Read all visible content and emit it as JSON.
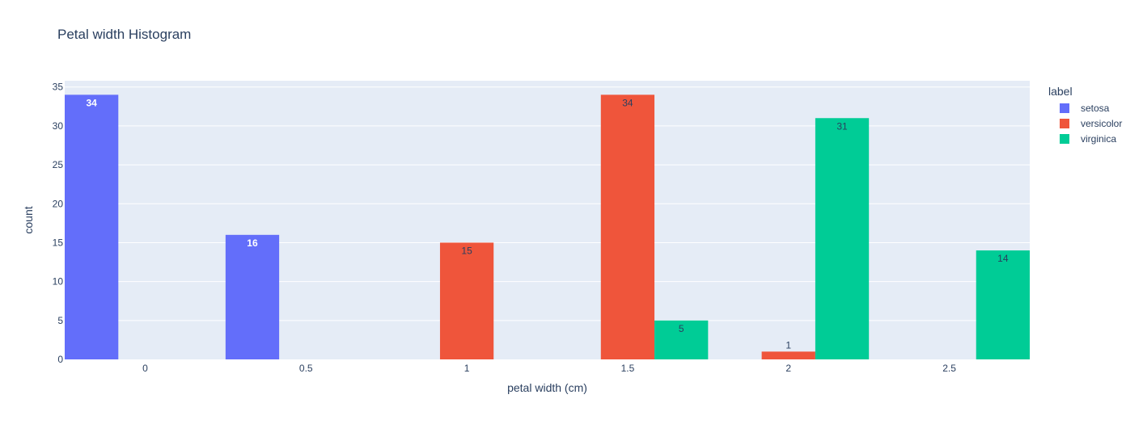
{
  "chart_data": {
    "type": "bar",
    "title": "Petal width Histogram",
    "xlabel": "petal width (cm)",
    "ylabel": "count",
    "xlim": [
      -0.25,
      2.75
    ],
    "ylim": [
      0,
      35.8
    ],
    "x_ticks": [
      "0",
      "0.5",
      "1",
      "1.5",
      "2",
      "2.5"
    ],
    "y_ticks": [
      "0",
      "5",
      "10",
      "15",
      "20",
      "25",
      "30",
      "35"
    ],
    "legend_title": "label",
    "legend_placement": "right",
    "grid": true,
    "bin_width": 0.5,
    "series": [
      {
        "name": "setosa",
        "color": "#636efa",
        "points": [
          {
            "x": 0,
            "y": 34
          },
          {
            "x": 0.5,
            "y": 16
          }
        ]
      },
      {
        "name": "versicolor",
        "color": "#EF553B",
        "points": [
          {
            "x": 1,
            "y": 15
          },
          {
            "x": 1.5,
            "y": 34
          },
          {
            "x": 2,
            "y": 1
          }
        ]
      },
      {
        "name": "virginica",
        "color": "#00cc96",
        "points": [
          {
            "x": 1.5,
            "y": 5
          },
          {
            "x": 2,
            "y": 31
          },
          {
            "x": 2.5,
            "y": 14
          }
        ]
      }
    ],
    "colors": {
      "plot_bg": "#E5ECF6",
      "grid": "#ffffff",
      "text": "#2a3f5f"
    }
  }
}
